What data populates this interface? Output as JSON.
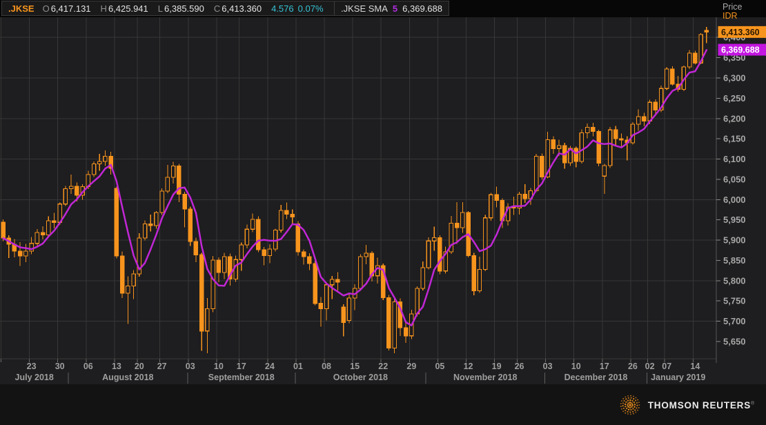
{
  "header": {
    "symbol": ".JKSE",
    "fields": [
      {
        "label": "O",
        "value": "6,417.131"
      },
      {
        "label": "H",
        "value": "6,425.941"
      },
      {
        "label": "L",
        "value": "6,385.590"
      },
      {
        "label": "C",
        "value": "6,413.360"
      }
    ],
    "change": "4.576",
    "change_pct": "0.07%",
    "sma": {
      "name": ".JKSE SMA",
      "period": "5",
      "value": "6,369.688"
    }
  },
  "axis": {
    "price_title": "Price",
    "currency": "IDR",
    "last_price_badge": "6,413.360",
    "sma_badge": "6,369.688"
  },
  "footer": {
    "brand": "THOMSON REUTERS",
    "reg": "®"
  },
  "colors": {
    "background": "#1e1d1f",
    "topbar": "#070707",
    "grid": "#373738",
    "axis_line": "#57585c",
    "axis_text": "#a8a8a8",
    "xlabel_text": "#9f9f9f",
    "candle": "#f7941d",
    "sma_line": "#c127d6",
    "sma_badge": "#c316e0",
    "badge_text_dark": "#2a1802",
    "badge_text_light": "#ffffff",
    "cyan": "#35c3d6",
    "orange": "#f7941d"
  },
  "chart_data": {
    "type": "candlestick+line",
    "title": ".JKSE daily candles with 5-period SMA overlay",
    "ylabel": "Price IDR",
    "ylim": [
      5600,
      6450
    ],
    "y_ticks": [
      5650,
      5700,
      5750,
      5800,
      5850,
      5900,
      5950,
      6000,
      6050,
      6100,
      6150,
      6200,
      6250,
      6300,
      6350,
      6400
    ],
    "h_gridlines": [
      5700,
      5800,
      5900,
      6000,
      6100,
      6200,
      6300,
      6400
    ],
    "grid": true,
    "legend_position": "top-left",
    "overlays": [
      {
        "name": "SMA",
        "period": 5,
        "last_value": 6369.688
      }
    ],
    "last_close": 6413.36,
    "x_month_labels": [
      "July 2018",
      "August 2018",
      "September 2018",
      "October 2018",
      "November 2018",
      "December 2018",
      "January 2019"
    ],
    "x_week_labels": [
      "23",
      "30",
      "06",
      "13",
      "20",
      "27",
      "03",
      "10",
      "17",
      "24",
      "01",
      "08",
      "15",
      "22",
      "29",
      "05",
      "12",
      "19",
      "26",
      "03",
      "10",
      "17",
      "26",
      "02",
      "07",
      "14"
    ],
    "candles_format": [
      "date",
      "open",
      "high",
      "low",
      "close"
    ],
    "candles": [
      [
        "2018-07-16",
        5944,
        5951,
        5898,
        5905
      ],
      [
        "2018-07-17",
        5905,
        5912,
        5856,
        5890
      ],
      [
        "2018-07-18",
        5890,
        5903,
        5858,
        5873
      ],
      [
        "2018-07-19",
        5873,
        5895,
        5836,
        5861
      ],
      [
        "2018-07-20",
        5861,
        5891,
        5846,
        5873
      ],
      [
        "2018-07-23",
        5873,
        5908,
        5865,
        5892
      ],
      [
        "2018-07-24",
        5892,
        5927,
        5886,
        5919
      ],
      [
        "2018-07-25",
        5919,
        5934,
        5902,
        5913
      ],
      [
        "2018-07-26",
        5913,
        5959,
        5908,
        5948
      ],
      [
        "2018-07-27",
        5948,
        5967,
        5929,
        5944
      ],
      [
        "2018-07-30",
        5944,
        5993,
        5938,
        5989
      ],
      [
        "2018-07-31",
        5989,
        6034,
        5984,
        6027
      ],
      [
        "2018-08-01",
        6027,
        6062,
        6014,
        6033
      ],
      [
        "2018-08-02",
        6033,
        6042,
        5995,
        6011
      ],
      [
        "2018-08-03",
        6011,
        6038,
        6000,
        6032
      ],
      [
        "2018-08-06",
        6032,
        6071,
        6026,
        6062
      ],
      [
        "2018-08-07",
        6062,
        6094,
        6056,
        6088
      ],
      [
        "2018-08-08",
        6088,
        6113,
        6071,
        6094
      ],
      [
        "2018-08-09",
        6094,
        6121,
        6083,
        6107
      ],
      [
        "2018-08-10",
        6107,
        6118,
        6062,
        6077
      ],
      [
        "2018-08-13",
        6028,
        6032,
        5855,
        5861
      ],
      [
        "2018-08-14",
        5861,
        5872,
        5757,
        5769
      ],
      [
        "2018-08-15",
        5769,
        5811,
        5693,
        5787
      ],
      [
        "2018-08-16",
        5787,
        5826,
        5755,
        5817
      ],
      [
        "2018-08-20",
        5817,
        5917,
        5810,
        5905
      ],
      [
        "2018-08-21",
        5905,
        5949,
        5899,
        5940
      ],
      [
        "2018-08-23",
        5940,
        5963,
        5921,
        5936
      ],
      [
        "2018-08-24",
        5936,
        5972,
        5928,
        5968
      ],
      [
        "2018-08-27",
        5968,
        6028,
        5962,
        6021
      ],
      [
        "2018-08-28",
        6021,
        6086,
        6016,
        6055
      ],
      [
        "2018-08-29",
        6055,
        6093,
        6040,
        6083
      ],
      [
        "2018-08-30",
        6083,
        6088,
        5994,
        6013
      ],
      [
        "2018-08-31",
        6013,
        6019,
        5932,
        5977
      ],
      [
        "2018-09-03",
        5977,
        5983,
        5886,
        5897
      ],
      [
        "2018-09-04",
        5897,
        5906,
        5846,
        5864
      ],
      [
        "2018-09-05",
        5864,
        5869,
        5627,
        5676
      ],
      [
        "2018-09-06",
        5676,
        5757,
        5621,
        5731
      ],
      [
        "2018-09-07",
        5731,
        5861,
        5722,
        5851
      ],
      [
        "2018-09-10",
        5851,
        5858,
        5796,
        5820
      ],
      [
        "2018-09-12",
        5820,
        5869,
        5804,
        5859
      ],
      [
        "2018-09-13",
        5859,
        5867,
        5788,
        5804
      ],
      [
        "2018-09-14",
        5804,
        5862,
        5797,
        5852
      ],
      [
        "2018-09-17",
        5852,
        5894,
        5824,
        5888
      ],
      [
        "2018-09-18",
        5888,
        5938,
        5880,
        5927
      ],
      [
        "2018-09-19",
        5927,
        5966,
        5920,
        5951
      ],
      [
        "2018-09-20",
        5951,
        5959,
        5870,
        5876
      ],
      [
        "2018-09-21",
        5876,
        5883,
        5838,
        5862
      ],
      [
        "2018-09-24",
        5862,
        5890,
        5843,
        5878
      ],
      [
        "2018-09-25",
        5878,
        5928,
        5872,
        5925
      ],
      [
        "2018-09-26",
        5925,
        5987,
        5919,
        5973
      ],
      [
        "2018-09-27",
        5973,
        5993,
        5952,
        5964
      ],
      [
        "2018-09-28",
        5964,
        5976,
        5940,
        5957
      ],
      [
        "2018-10-01",
        5940,
        5947,
        5862,
        5871
      ],
      [
        "2018-10-02",
        5871,
        5877,
        5840,
        5859
      ],
      [
        "2018-10-03",
        5859,
        5868,
        5826,
        5842
      ],
      [
        "2018-10-04",
        5842,
        5849,
        5739,
        5744
      ],
      [
        "2018-10-05",
        5744,
        5760,
        5687,
        5731
      ],
      [
        "2018-10-08",
        5731,
        5796,
        5702,
        5790
      ],
      [
        "2018-10-09",
        5790,
        5812,
        5755,
        5803
      ],
      [
        "2018-10-10",
        5803,
        5821,
        5776,
        5796
      ],
      [
        "2018-10-11",
        5735,
        5742,
        5663,
        5697
      ],
      [
        "2018-10-12",
        5702,
        5767,
        5695,
        5757
      ],
      [
        "2018-10-15",
        5757,
        5791,
        5727,
        5781
      ],
      [
        "2018-10-16",
        5781,
        5865,
        5775,
        5859
      ],
      [
        "2018-10-17",
        5859,
        5888,
        5841,
        5868
      ],
      [
        "2018-10-18",
        5868,
        5873,
        5798,
        5812
      ],
      [
        "2018-10-19",
        5812,
        5857,
        5793,
        5837
      ],
      [
        "2018-10-22",
        5837,
        5842,
        5752,
        5758
      ],
      [
        "2018-10-23",
        5758,
        5765,
        5628,
        5634
      ],
      [
        "2018-10-24",
        5634,
        5755,
        5621,
        5748
      ],
      [
        "2018-10-25",
        5748,
        5756,
        5664,
        5684
      ],
      [
        "2018-10-26",
        5684,
        5700,
        5647,
        5664
      ],
      [
        "2018-10-29",
        5664,
        5728,
        5656,
        5718
      ],
      [
        "2018-10-30",
        5718,
        5786,
        5712,
        5781
      ],
      [
        "2018-10-31",
        5781,
        5847,
        5776,
        5832
      ],
      [
        "2018-11-01",
        5832,
        5907,
        5828,
        5898
      ],
      [
        "2018-11-02",
        5898,
        5933,
        5874,
        5906
      ],
      [
        "2018-11-05",
        5906,
        5912,
        5816,
        5824
      ],
      [
        "2018-11-06",
        5824,
        5884,
        5818,
        5871
      ],
      [
        "2018-11-07",
        5871,
        5960,
        5866,
        5942
      ],
      [
        "2018-11-08",
        5942,
        5994,
        5891,
        5931
      ],
      [
        "2018-11-09",
        5931,
        5994,
        5918,
        5968
      ],
      [
        "2018-11-12",
        5968,
        5972,
        5858,
        5862
      ],
      [
        "2018-11-13",
        5862,
        5869,
        5764,
        5775
      ],
      [
        "2018-11-14",
        5775,
        5859,
        5770,
        5828
      ],
      [
        "2018-11-15",
        5828,
        5962,
        5824,
        5955
      ],
      [
        "2018-11-16",
        5955,
        6017,
        5948,
        6012
      ],
      [
        "2018-11-19",
        6012,
        6032,
        5981,
        5998
      ],
      [
        "2018-11-21",
        5998,
        6003,
        5930,
        5948
      ],
      [
        "2018-11-22",
        5948,
        5991,
        5936,
        5982
      ],
      [
        "2018-11-23",
        5982,
        6007,
        5962,
        5979
      ],
      [
        "2018-11-26",
        5979,
        6019,
        5963,
        6013
      ],
      [
        "2018-11-27",
        6013,
        6038,
        5992,
        6002
      ],
      [
        "2018-11-28",
        6002,
        6029,
        5987,
        6022
      ],
      [
        "2018-11-29",
        6022,
        6113,
        6018,
        6107
      ],
      [
        "2018-11-30",
        6107,
        6114,
        6049,
        6056
      ],
      [
        "2018-12-03",
        6056,
        6167,
        6052,
        6148
      ],
      [
        "2018-12-04",
        6148,
        6156,
        6113,
        6126
      ],
      [
        "2018-12-05",
        6126,
        6148,
        6108,
        6133
      ],
      [
        "2018-12-06",
        6133,
        6140,
        6076,
        6091
      ],
      [
        "2018-12-07",
        6091,
        6132,
        6083,
        6126
      ],
      [
        "2018-12-10",
        6126,
        6131,
        6080,
        6094
      ],
      [
        "2018-12-11",
        6094,
        6173,
        6089,
        6165
      ],
      [
        "2018-12-12",
        6165,
        6188,
        6151,
        6178
      ],
      [
        "2018-12-13",
        6178,
        6189,
        6156,
        6168
      ],
      [
        "2018-12-14",
        6168,
        6172,
        6082,
        6090
      ],
      [
        "2018-12-17",
        6058,
        6088,
        6014,
        6084
      ],
      [
        "2018-12-18",
        6084,
        6179,
        6078,
        6172
      ],
      [
        "2018-12-19",
        6172,
        6182,
        6133,
        6150
      ],
      [
        "2018-12-20",
        6150,
        6163,
        6128,
        6147
      ],
      [
        "2018-12-21",
        6147,
        6156,
        6097,
        6140
      ],
      [
        "2018-12-26",
        6140,
        6191,
        6136,
        6186
      ],
      [
        "2018-12-27",
        6186,
        6223,
        6170,
        6205
      ],
      [
        "2018-12-28",
        6205,
        6214,
        6181,
        6194
      ],
      [
        "2019-01-02",
        6194,
        6246,
        6186,
        6240
      ],
      [
        "2019-01-03",
        6240,
        6247,
        6208,
        6221
      ],
      [
        "2019-01-04",
        6221,
        6281,
        6216,
        6274
      ],
      [
        "2019-01-07",
        6274,
        6326,
        6270,
        6322
      ],
      [
        "2019-01-08",
        6322,
        6329,
        6281,
        6285
      ],
      [
        "2019-01-09",
        6285,
        6305,
        6266,
        6272
      ],
      [
        "2019-01-10",
        6272,
        6331,
        6268,
        6327
      ],
      [
        "2019-01-11",
        6327,
        6369,
        6322,
        6361
      ],
      [
        "2019-01-14",
        6361,
        6367,
        6333,
        6337
      ],
      [
        "2019-01-15",
        6337,
        6411,
        6334,
        6407
      ],
      [
        "2019-01-16",
        6417.131,
        6425.941,
        6385.59,
        6413.36
      ]
    ]
  }
}
